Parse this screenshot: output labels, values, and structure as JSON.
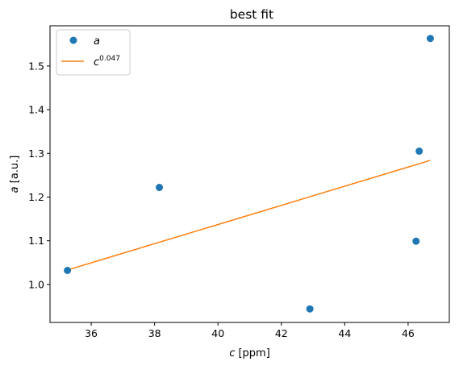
{
  "chart_data": {
    "type": "scatter",
    "title": "best fit",
    "xlabel_symbol": "c",
    "xlabel_unit": " [ppm]",
    "ylabel_symbol": "a",
    "ylabel_unit": " [a.u.]",
    "xlim": [
      34.7,
      47.3
    ],
    "ylim": [
      0.913,
      1.592
    ],
    "xticks": [
      36,
      38,
      40,
      42,
      44,
      46
    ],
    "yticks": [
      1.0,
      1.1,
      1.2,
      1.3,
      1.4,
      1.5
    ],
    "xtick_labels": [
      "36",
      "38",
      "40",
      "42",
      "44",
      "46"
    ],
    "ytick_labels": [
      "1.0",
      "1.1",
      "1.2",
      "1.3",
      "1.4",
      "1.5"
    ],
    "grid": false,
    "legend_position": "upper-left",
    "series": [
      {
        "name": "a",
        "kind": "scatter",
        "color": "#1f77b4",
        "x": [
          35.25,
          38.15,
          42.9,
          46.25,
          46.35,
          46.7
        ],
        "y": [
          1.032,
          1.222,
          0.944,
          1.099,
          1.305,
          1.563
        ]
      },
      {
        "name_base": "c",
        "name_exp": "0.047",
        "kind": "line",
        "color": "#ff7f0e",
        "x": [
          35.25,
          46.7
        ],
        "y": [
          1.033,
          1.284
        ]
      }
    ]
  }
}
